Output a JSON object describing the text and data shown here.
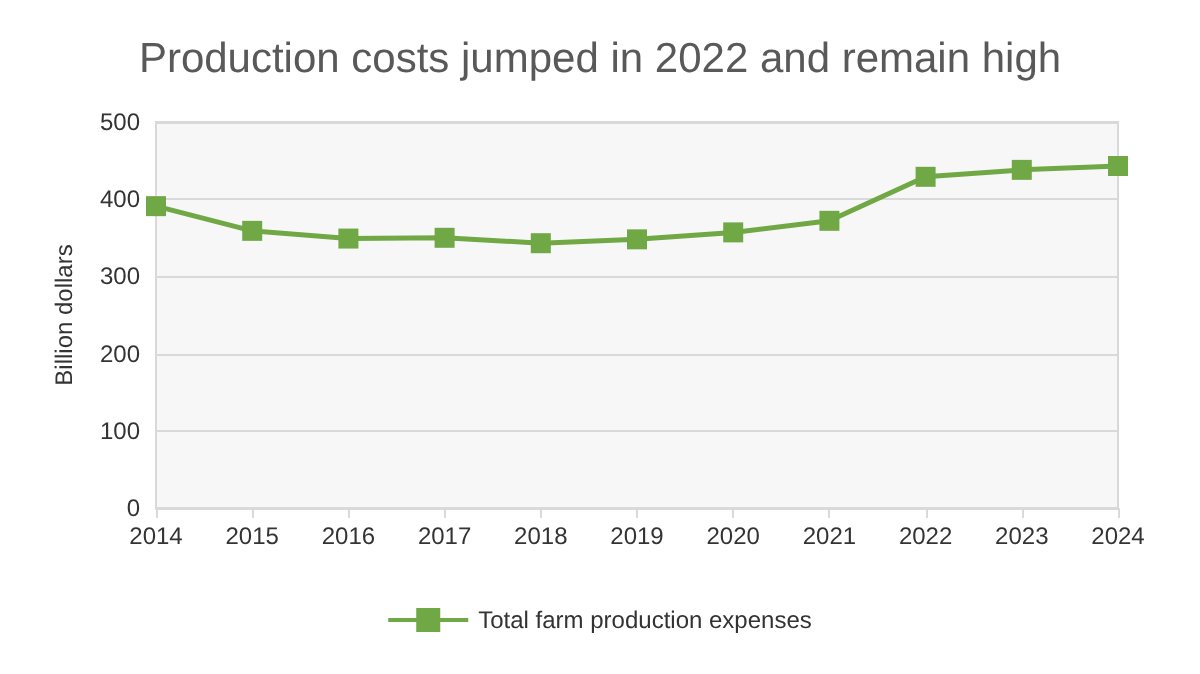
{
  "chart_data": {
    "type": "line",
    "title": "Production costs jumped in 2022 and remain high",
    "ylabel": "Billion dollars",
    "categories": [
      "2014",
      "2015",
      "2016",
      "2017",
      "2018",
      "2019",
      "2020",
      "2021",
      "2022",
      "2023",
      "2024"
    ],
    "series": [
      {
        "name": "Total farm production expenses",
        "color": "#70a845",
        "values": [
          391,
          359,
          349,
          350,
          343,
          348,
          357,
          372,
          429,
          438,
          443
        ]
      }
    ],
    "ylim": [
      0,
      500
    ],
    "yticks": [
      0,
      100,
      200,
      300,
      400,
      500
    ],
    "grid": "y",
    "legend": "bottom",
    "marker": "square",
    "line_style": "solid"
  }
}
